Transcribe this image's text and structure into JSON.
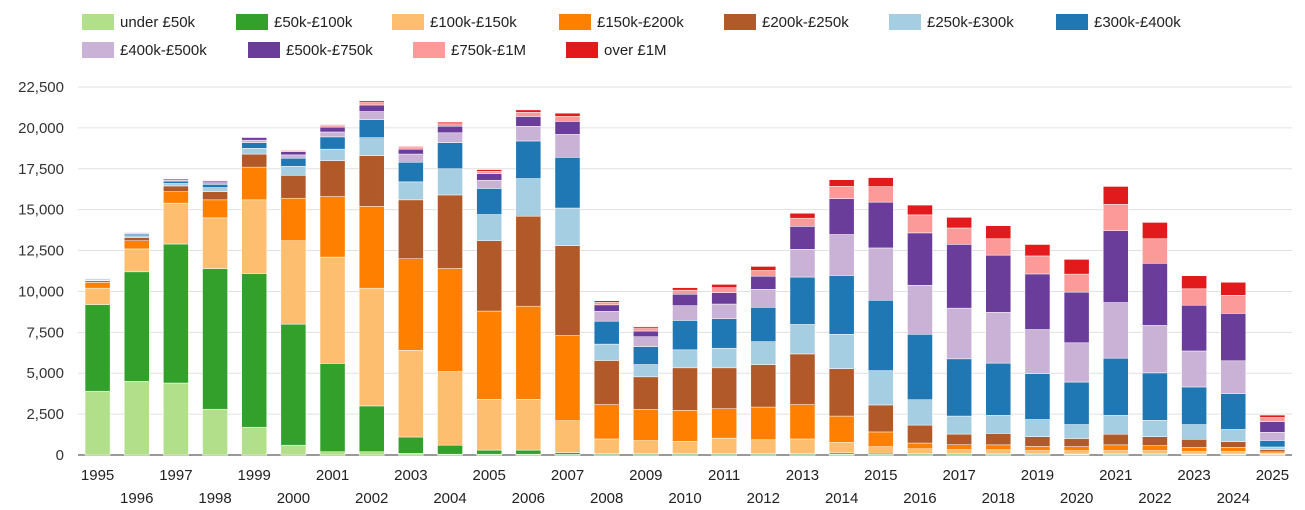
{
  "chart_data": {
    "type": "bar",
    "stacked": true,
    "title": "",
    "xlabel": "",
    "ylabel": "",
    "ylim": [
      0,
      22500
    ],
    "yticks": [
      0,
      2500,
      5000,
      7500,
      10000,
      12500,
      15000,
      17500,
      20000,
      22500
    ],
    "ytick_labels": [
      "0",
      "2,500",
      "5,000",
      "7,500",
      "10,000",
      "12,500",
      "15,000",
      "17,500",
      "20,000",
      "22,500"
    ],
    "grid": true,
    "legend_position": "top",
    "categories": [
      "1995",
      "1996",
      "1997",
      "1998",
      "1999",
      "2000",
      "2001",
      "2002",
      "2003",
      "2004",
      "2005",
      "2006",
      "2007",
      "2008",
      "2009",
      "2010",
      "2011",
      "2012",
      "2013",
      "2014",
      "2015",
      "2016",
      "2017",
      "2018",
      "2019",
      "2020",
      "2021",
      "2022",
      "2023",
      "2024",
      "2025"
    ],
    "series": [
      {
        "name": "under £50k",
        "color": "#b2df8a",
        "values": [
          3900,
          4500,
          4400,
          2800,
          1700,
          600,
          200,
          200,
          100,
          50,
          50,
          50,
          30,
          20,
          20,
          20,
          20,
          20,
          20,
          40,
          30,
          20,
          20,
          20,
          20,
          20,
          20,
          20,
          20,
          20,
          10
        ]
      },
      {
        "name": "£50k-£100k",
        "color": "#33a02c",
        "values": [
          5300,
          6700,
          8500,
          8600,
          9400,
          7400,
          5400,
          2800,
          1000,
          550,
          250,
          250,
          120,
          60,
          60,
          60,
          60,
          60,
          60,
          90,
          80,
          60,
          60,
          50,
          50,
          40,
          50,
          50,
          40,
          40,
          20
        ]
      },
      {
        "name": "£100k-£150k",
        "color": "#fdbf6f",
        "values": [
          1000,
          1400,
          2500,
          3100,
          4500,
          5100,
          6500,
          7200,
          5300,
          4500,
          3100,
          3100,
          1950,
          900,
          800,
          750,
          950,
          850,
          900,
          650,
          400,
          300,
          250,
          250,
          200,
          200,
          200,
          200,
          150,
          150,
          80
        ]
      },
      {
        "name": "£150k-£200k",
        "color": "#ff7f00",
        "values": [
          350,
          500,
          700,
          1100,
          2000,
          2600,
          3700,
          5000,
          5600,
          6300,
          5400,
          5700,
          5200,
          2100,
          1900,
          1900,
          1800,
          2000,
          2100,
          1600,
          900,
          350,
          300,
          300,
          250,
          250,
          350,
          300,
          250,
          250,
          80
        ]
      },
      {
        "name": "£200k-£250k",
        "color": "#b15928",
        "values": [
          100,
          200,
          350,
          500,
          800,
          1400,
          2200,
          3100,
          3600,
          4500,
          4300,
          5500,
          5500,
          2700,
          2000,
          2600,
          2500,
          2600,
          3100,
          2900,
          1650,
          1100,
          650,
          700,
          600,
          500,
          650,
          550,
          500,
          350,
          130
        ]
      },
      {
        "name": "£250k-£300k",
        "color": "#a6cee3",
        "values": [
          50,
          100,
          150,
          250,
          350,
          550,
          700,
          1100,
          1100,
          1600,
          1600,
          2300,
          2300,
          1000,
          750,
          1100,
          1200,
          1400,
          1800,
          2100,
          2100,
          1550,
          1100,
          1100,
          1050,
          850,
          1150,
          1000,
          900,
          750,
          170
        ]
      },
      {
        "name": "£300k-£400k",
        "color": "#1f78b4",
        "values": [
          50,
          100,
          150,
          200,
          350,
          500,
          750,
          1100,
          1200,
          1600,
          1600,
          2300,
          3100,
          1400,
          1100,
          1800,
          1800,
          2100,
          2900,
          3600,
          4300,
          4000,
          3500,
          3200,
          2800,
          2600,
          3500,
          2900,
          2300,
          2200,
          400
        ]
      },
      {
        "name": "£400k-£500k",
        "color": "#cab2d6",
        "values": [
          30,
          50,
          70,
          100,
          150,
          200,
          300,
          500,
          500,
          600,
          500,
          900,
          1400,
          600,
          600,
          900,
          900,
          1100,
          1700,
          2500,
          3200,
          3000,
          3100,
          3100,
          2700,
          2400,
          3400,
          2900,
          2200,
          2000,
          500
        ]
      },
      {
        "name": "£500k-£750k",
        "color": "#6a3d9a",
        "values": [
          20,
          50,
          70,
          100,
          150,
          200,
          300,
          400,
          300,
          400,
          400,
          600,
          800,
          400,
          350,
          700,
          700,
          800,
          1400,
          2200,
          2800,
          3200,
          3900,
          3500,
          3400,
          3100,
          4400,
          3800,
          2800,
          2900,
          650
        ]
      },
      {
        "name": "£750k-£1M",
        "color": "#fb9a99",
        "values": [
          10,
          20,
          30,
          40,
          60,
          80,
          100,
          150,
          100,
          150,
          150,
          250,
          300,
          150,
          150,
          250,
          300,
          350,
          500,
          750,
          950,
          1100,
          1000,
          1000,
          1100,
          1100,
          1600,
          1500,
          1000,
          1100,
          250
        ]
      },
      {
        "name": "over £1M",
        "color": "#e31a1c",
        "values": [
          10,
          10,
          20,
          20,
          30,
          30,
          50,
          100,
          60,
          100,
          100,
          150,
          200,
          100,
          100,
          150,
          200,
          250,
          300,
          400,
          550,
          600,
          650,
          800,
          700,
          900,
          1100,
          1000,
          800,
          800,
          150
        ]
      }
    ]
  }
}
